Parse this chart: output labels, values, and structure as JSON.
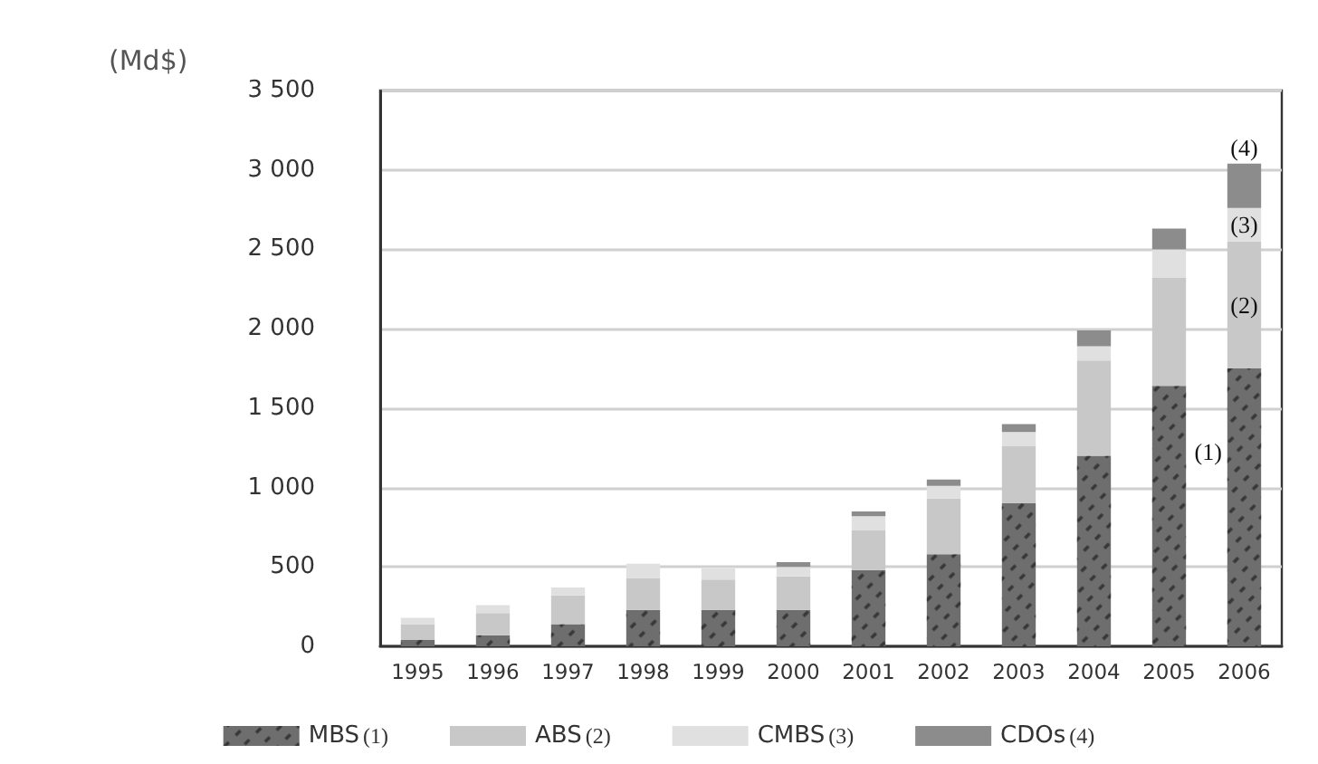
{
  "chart_data": {
    "type": "bar",
    "stacked": true,
    "ylabel": "(Md$)",
    "categories": [
      "1995",
      "1996",
      "1997",
      "1998",
      "1999",
      "2000",
      "2001",
      "2002",
      "2003",
      "2004",
      "2005",
      "2006"
    ],
    "series": [
      {
        "name": "MBS(1)",
        "color": "#6e6e6e",
        "values": [
          40,
          70,
          140,
          230,
          230,
          230,
          480,
          580,
          900,
          1200,
          1640,
          1750
        ]
      },
      {
        "name": "ABS(2)",
        "color": "#c8c8c8",
        "values": [
          100,
          140,
          180,
          200,
          190,
          210,
          250,
          350,
          360,
          600,
          680,
          800
        ]
      },
      {
        "name": "CMBS(3)",
        "color": "#e0e0e0",
        "values": [
          40,
          50,
          50,
          90,
          70,
          60,
          90,
          80,
          90,
          90,
          180,
          210
        ]
      },
      {
        "name": "CDOs(4)",
        "color": "#8c8c8c",
        "values": [
          0,
          0,
          0,
          0,
          0,
          30,
          30,
          40,
          50,
          100,
          130,
          280
        ]
      }
    ],
    "ylim": [
      0,
      3500
    ],
    "yticks": [
      0,
      500,
      {
        "value": 1000,
        "label": "1 000"
      },
      {
        "value": 1500,
        "label": "1 500"
      },
      {
        "value": 2000,
        "label": "2 000"
      },
      {
        "value": 2500,
        "label": "2 500"
      },
      {
        "value": 3000,
        "label": "3 000"
      },
      {
        "value": 3500,
        "label": "3 500"
      }
    ],
    "grid": "y",
    "legend": "bottom",
    "annotations": [
      "(1)",
      "(2)",
      "(3)",
      "(4)"
    ]
  }
}
